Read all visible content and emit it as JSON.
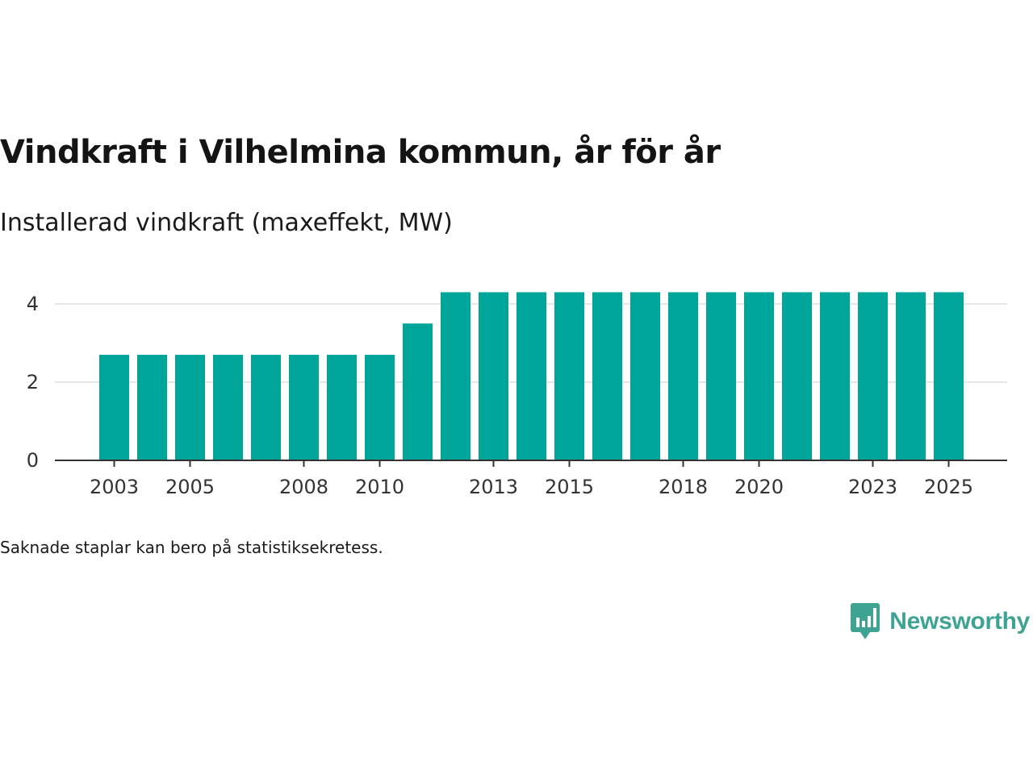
{
  "title": "Vindkraft i Vilhelmina kommun, år för år",
  "subtitle": "Installerad vindkraft (maxeffekt, MW)",
  "footnote": "Saknade staplar kan bero på statistiksekretess.",
  "brand": {
    "name": "Newsworthy",
    "color": "#3fa394"
  },
  "chart_data": {
    "type": "bar",
    "categories": [
      "2003",
      "2004",
      "2005",
      "2006",
      "2007",
      "2008",
      "2009",
      "2010",
      "2011",
      "2012",
      "2013",
      "2014",
      "2015",
      "2016",
      "2017",
      "2018",
      "2019",
      "2020",
      "2021",
      "2022",
      "2023",
      "2024",
      "2025"
    ],
    "values": [
      2.7,
      2.7,
      2.7,
      2.7,
      2.7,
      2.7,
      2.7,
      2.7,
      3.5,
      4.3,
      4.3,
      4.3,
      4.3,
      4.3,
      4.3,
      4.3,
      4.3,
      4.3,
      4.3,
      4.3,
      4.3,
      4.3,
      4.3
    ],
    "x_tick_labels": [
      "2003",
      "2005",
      "2008",
      "2010",
      "2013",
      "2015",
      "2018",
      "2020",
      "2023",
      "2025"
    ],
    "y_ticks": [
      0,
      2,
      4
    ],
    "ylim": [
      0,
      4.4
    ],
    "grid": true,
    "bar_color": "#00a59a",
    "grid_color": "#dddddd",
    "axis_color": "#333333"
  }
}
